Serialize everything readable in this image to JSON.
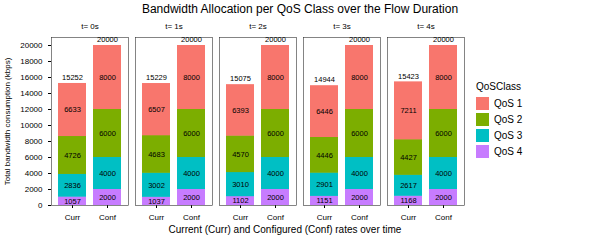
{
  "chart_data": {
    "type": "bar",
    "title": "Bandwidth Allocation per QoS Class over the Flow Duration",
    "x_label": "Current (Curr) and Configured (Conf) rates over time",
    "y_label": "Total bandwidth consumption (kbps)",
    "legend_title": "QoSClass",
    "facets": [
      "t= 0s",
      "t= 1s",
      "t= 2s",
      "t= 3s",
      "t= 4s"
    ],
    "categories": [
      "Curr",
      "Conf"
    ],
    "series": [
      {
        "name": "QoS 1",
        "color": "#F8766D",
        "values": [
          [
            6633,
            8000
          ],
          [
            6507,
            8000
          ],
          [
            6393,
            8000
          ],
          [
            6446,
            8000
          ],
          [
            7211,
            8000
          ]
        ]
      },
      {
        "name": "QoS 2",
        "color": "#7CAE00",
        "values": [
          [
            4726,
            6000
          ],
          [
            4683,
            6000
          ],
          [
            4570,
            6000
          ],
          [
            4446,
            6000
          ],
          [
            4427,
            6000
          ]
        ]
      },
      {
        "name": "QoS 3",
        "color": "#00BFC4",
        "values": [
          [
            2836,
            4000
          ],
          [
            3002,
            4000
          ],
          [
            3010,
            4000
          ],
          [
            2901,
            4000
          ],
          [
            2617,
            4000
          ]
        ]
      },
      {
        "name": "QoS 4",
        "color": "#C77CFF",
        "values": [
          [
            1057,
            2000
          ],
          [
            1037,
            2000
          ],
          [
            1102,
            2000
          ],
          [
            1151,
            2000
          ],
          [
            1168,
            2000
          ]
        ]
      }
    ],
    "totals": [
      [
        15252,
        20000
      ],
      [
        15229,
        20000
      ],
      [
        15075,
        20000
      ],
      [
        14944,
        20000
      ],
      [
        15423,
        20000
      ]
    ],
    "ylim": [
      0,
      21000
    ],
    "yticks": [
      0,
      2000,
      4000,
      6000,
      8000,
      10000,
      12000,
      14000,
      16000,
      18000,
      20000
    ],
    "stacked": true,
    "data_labels": true,
    "legend": "right",
    "grid": false
  }
}
